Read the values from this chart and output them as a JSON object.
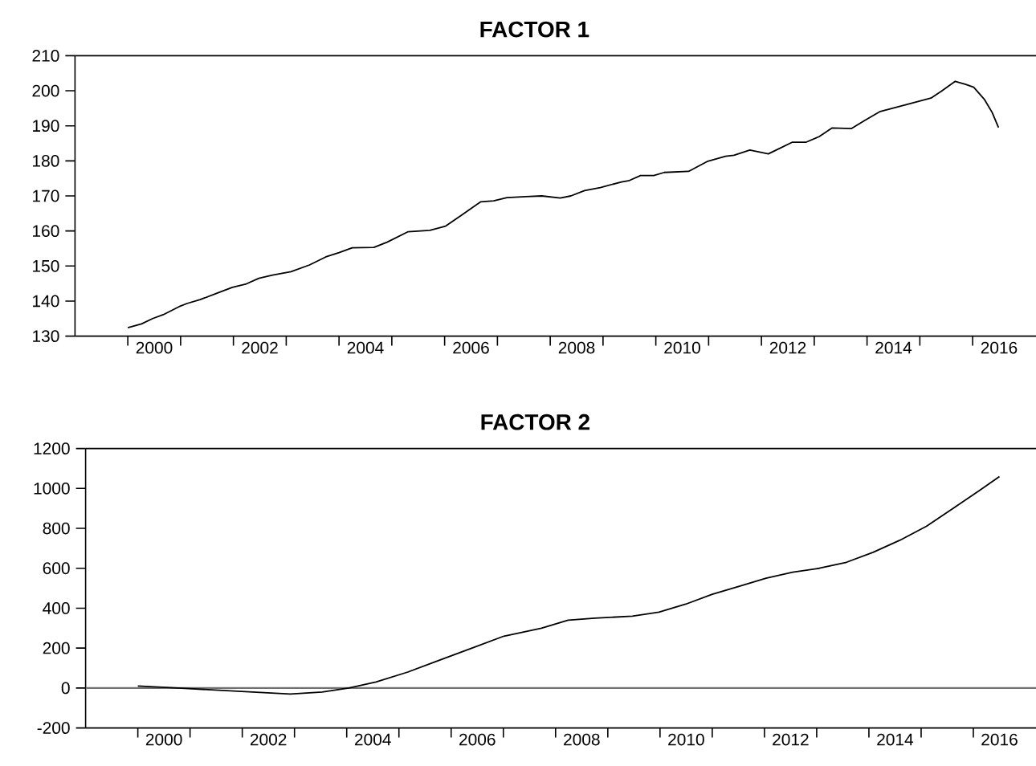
{
  "chart_data": [
    {
      "type": "line",
      "title": "FACTOR 1",
      "color": "#000000",
      "x": [
        2000.0,
        2000.26,
        2000.47,
        2000.67,
        2000.97,
        2001.12,
        2001.37,
        2001.68,
        2001.98,
        2002.23,
        2002.48,
        2002.74,
        2003.09,
        2003.44,
        2003.75,
        2004.0,
        2004.25,
        2004.66,
        2004.91,
        2005.31,
        2005.72,
        2006.02,
        2006.32,
        2006.68,
        2006.93,
        2007.18,
        2007.54,
        2007.84,
        2008.19,
        2008.39,
        2008.65,
        2008.95,
        2009.35,
        2009.5,
        2009.71,
        2009.96,
        2010.16,
        2010.62,
        2010.97,
        2011.32,
        2011.48,
        2011.78,
        2012.13,
        2012.28,
        2012.58,
        2012.84,
        2013.09,
        2013.34,
        2013.7,
        2013.95,
        2014.25,
        2014.61,
        2014.91,
        2015.21,
        2015.41,
        2015.67,
        2015.87,
        2016.02,
        2016.22,
        2016.37,
        2016.49
      ],
      "values": [
        132.4,
        133.5,
        135.0,
        136.1,
        138.4,
        139.3,
        140.4,
        142.2,
        143.9,
        144.8,
        146.5,
        147.4,
        148.4,
        150.3,
        152.6,
        153.8,
        155.2,
        155.3,
        156.8,
        159.8,
        160.2,
        161.4,
        164.5,
        168.3,
        168.6,
        169.5,
        169.8,
        170.0,
        169.4,
        170.0,
        171.5,
        172.4,
        174.0,
        174.4,
        175.8,
        175.8,
        176.7,
        177.0,
        179.8,
        181.3,
        181.6,
        183.1,
        182.0,
        183.1,
        185.3,
        185.3,
        186.9,
        189.4,
        189.2,
        191.5,
        194.1,
        195.5,
        196.7,
        197.9,
        199.9,
        202.7,
        201.8,
        201.0,
        197.6,
        193.8,
        189.5
      ],
      "xlim": [
        1999,
        2017.2
      ],
      "ylim": [
        130,
        210
      ],
      "xticks": [
        {
          "value": 2000,
          "label": null
        },
        {
          "value": 2000.5,
          "label": "2000"
        },
        {
          "value": 2001,
          "label": null
        },
        {
          "value": 2002,
          "label": null
        },
        {
          "value": 2002.5,
          "label": "2002"
        },
        {
          "value": 2003,
          "label": null
        },
        {
          "value": 2004,
          "label": null
        },
        {
          "value": 2004.5,
          "label": "2004"
        },
        {
          "value": 2005,
          "label": null
        },
        {
          "value": 2006,
          "label": null
        },
        {
          "value": 2006.5,
          "label": "2006"
        },
        {
          "value": 2007,
          "label": null
        },
        {
          "value": 2008,
          "label": null
        },
        {
          "value": 2008.5,
          "label": "2008"
        },
        {
          "value": 2009,
          "label": null
        },
        {
          "value": 2010,
          "label": null
        },
        {
          "value": 2010.5,
          "label": "2010"
        },
        {
          "value": 2011,
          "label": null
        },
        {
          "value": 2012,
          "label": null
        },
        {
          "value": 2012.5,
          "label": "2012"
        },
        {
          "value": 2013,
          "label": null
        },
        {
          "value": 2014,
          "label": null
        },
        {
          "value": 2014.5,
          "label": "2014"
        },
        {
          "value": 2015,
          "label": null
        },
        {
          "value": 2016,
          "label": null
        },
        {
          "value": 2016.5,
          "label": "2016"
        }
      ],
      "yticks": [
        130,
        140,
        150,
        160,
        170,
        180,
        190,
        200,
        210
      ]
    },
    {
      "type": "line",
      "title": "FACTOR 2",
      "color": "#000000",
      "x": [
        2000.0,
        2000.77,
        2001.48,
        2002.2,
        2002.92,
        2003.53,
        2004.04,
        2004.56,
        2005.17,
        2005.78,
        2006.4,
        2007.01,
        2007.73,
        2008.24,
        2008.75,
        2009.47,
        2009.98,
        2010.49,
        2011.0,
        2011.52,
        2012.03,
        2012.54,
        2013.05,
        2013.57,
        2014.08,
        2014.59,
        2015.1,
        2015.61,
        2016.12,
        2016.5
      ],
      "values": [
        10,
        0,
        -10,
        -20,
        -30,
        -20,
        0,
        30,
        80,
        140,
        200,
        260,
        300,
        340,
        350,
        360,
        380,
        420,
        470,
        510,
        550,
        580,
        600,
        630,
        680,
        740,
        810,
        900,
        990,
        1060
      ],
      "xlim": [
        1999,
        2017.2
      ],
      "ylim": [
        -200,
        1200
      ],
      "xticks": [
        {
          "value": 2000,
          "label": null
        },
        {
          "value": 2000.5,
          "label": "2000"
        },
        {
          "value": 2001,
          "label": null
        },
        {
          "value": 2002,
          "label": null
        },
        {
          "value": 2002.5,
          "label": "2002"
        },
        {
          "value": 2003,
          "label": null
        },
        {
          "value": 2004,
          "label": null
        },
        {
          "value": 2004.5,
          "label": "2004"
        },
        {
          "value": 2005,
          "label": null
        },
        {
          "value": 2006,
          "label": null
        },
        {
          "value": 2006.5,
          "label": "2006"
        },
        {
          "value": 2007,
          "label": null
        },
        {
          "value": 2008,
          "label": null
        },
        {
          "value": 2008.5,
          "label": "2008"
        },
        {
          "value": 2009,
          "label": null
        },
        {
          "value": 2010,
          "label": null
        },
        {
          "value": 2010.5,
          "label": "2010"
        },
        {
          "value": 2011,
          "label": null
        },
        {
          "value": 2012,
          "label": null
        },
        {
          "value": 2012.5,
          "label": "2012"
        },
        {
          "value": 2013,
          "label": null
        },
        {
          "value": 2014,
          "label": null
        },
        {
          "value": 2014.5,
          "label": "2014"
        },
        {
          "value": 2015,
          "label": null
        },
        {
          "value": 2016,
          "label": null
        },
        {
          "value": 2016.5,
          "label": "2016"
        }
      ],
      "yticks": [
        -200,
        0,
        200,
        400,
        600,
        800,
        1000,
        1200
      ],
      "ref_lines": [
        {
          "axis": "y",
          "value": 0,
          "color": "#707070"
        }
      ]
    }
  ]
}
